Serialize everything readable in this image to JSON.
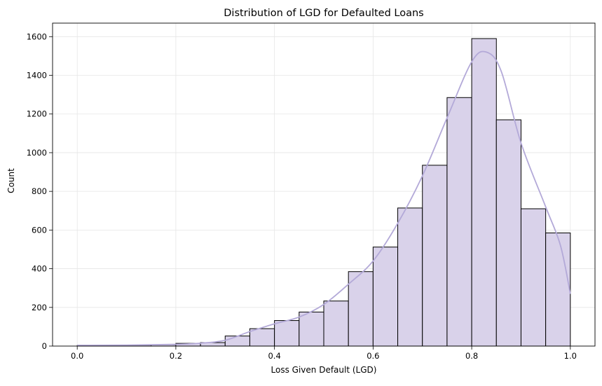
{
  "chart_data": {
    "type": "bar",
    "title": "Distribution of LGD for Defaulted Loans",
    "xlabel": "Loss Given Default (LGD)",
    "ylabel": "Count",
    "xlim": [
      -0.05,
      1.05
    ],
    "ylim": [
      0,
      1670
    ],
    "xticks": [
      "0.0",
      "0.2",
      "0.4",
      "0.6",
      "0.8",
      "1.0"
    ],
    "yticks": [
      "0",
      "200",
      "400",
      "600",
      "800",
      "1000",
      "1200",
      "1400",
      "1600"
    ],
    "grid": true,
    "bin_edges": [
      0.0,
      0.05,
      0.1,
      0.15,
      0.2,
      0.25,
      0.3,
      0.35,
      0.4,
      0.45,
      0.5,
      0.55,
      0.6,
      0.65,
      0.7,
      0.75,
      0.8,
      0.85,
      0.9,
      0.95,
      1.0
    ],
    "values": [
      3,
      4,
      5,
      7,
      14,
      18,
      52,
      90,
      132,
      176,
      233,
      385,
      512,
      714,
      935,
      1285,
      1590,
      1170,
      710,
      585
    ],
    "kde": {
      "x": [
        0.0,
        0.1,
        0.2,
        0.25,
        0.3,
        0.35,
        0.4,
        0.45,
        0.5,
        0.55,
        0.6,
        0.65,
        0.7,
        0.75,
        0.8,
        0.83,
        0.86,
        0.9,
        0.95,
        0.98,
        1.0
      ],
      "y": [
        4,
        5,
        9,
        15,
        30,
        75,
        115,
        150,
        215,
        320,
        440,
        635,
        880,
        1180,
        1470,
        1520,
        1420,
        1050,
        720,
        520,
        270
      ]
    },
    "colors": {
      "bar_fill": "#d9d2ea",
      "bar_edge": "#000000",
      "kde_line": "#b3a9d8",
      "grid": "#e6e6e6"
    }
  }
}
